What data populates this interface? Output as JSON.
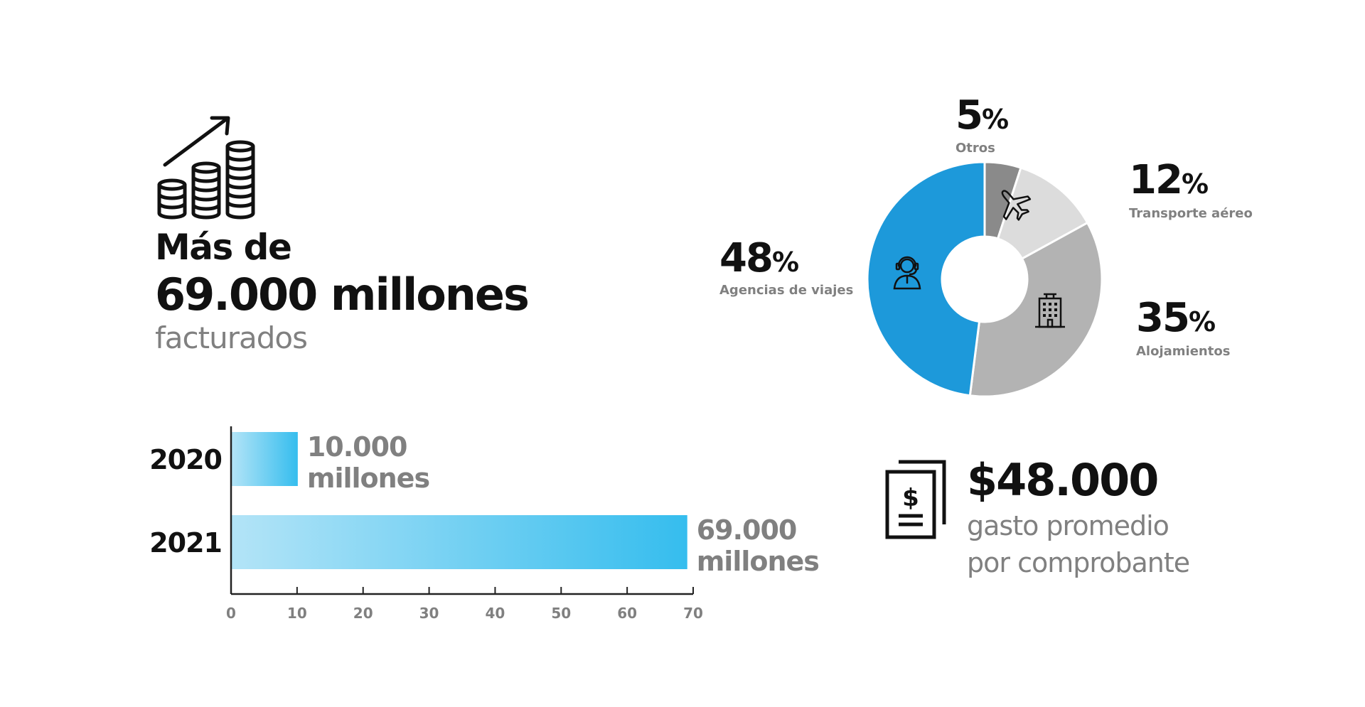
{
  "headline": {
    "line1": "Más de",
    "line2": "69.000 millones",
    "line3": "facturados",
    "icon": "coins-growth-icon"
  },
  "bar_chart": {
    "type": "bar",
    "orientation": "horizontal",
    "categories": [
      "2020",
      "2021"
    ],
    "values": [
      10,
      69
    ],
    "value_labels": [
      [
        "10.000",
        "millones"
      ],
      [
        "69.000",
        "millones"
      ]
    ],
    "xlim": [
      0,
      70
    ],
    "xticks": [
      0,
      10,
      20,
      30,
      40,
      50,
      60,
      70
    ],
    "gradient": [
      "#b3e4f7",
      "#35bdee"
    ],
    "axis_color": "#222222"
  },
  "chart_data": {
    "type": "pie",
    "donut": true,
    "start_angle_deg": 0,
    "slices": [
      {
        "label": "Otros",
        "value": 5,
        "color": "#8a8a8a",
        "pct_text": "5",
        "icon": ""
      },
      {
        "label": "Transporte aéreo",
        "value": 12,
        "color": "#dcdcdc",
        "pct_text": "12",
        "icon": "airplane-icon"
      },
      {
        "label": "Alojamientos",
        "value": 35,
        "color": "#b3b3b3",
        "pct_text": "35",
        "icon": "building-icon"
      },
      {
        "label": "Agencias de viajes",
        "value": 48,
        "color": "#1d99da",
        "pct_text": "48",
        "icon": "call-agent-icon"
      }
    ],
    "percent_sign": "%"
  },
  "summary": {
    "value": "$48.000",
    "line1": "gasto promedio",
    "line2": "por comprobante",
    "icon": "receipt-dollar-icon"
  }
}
